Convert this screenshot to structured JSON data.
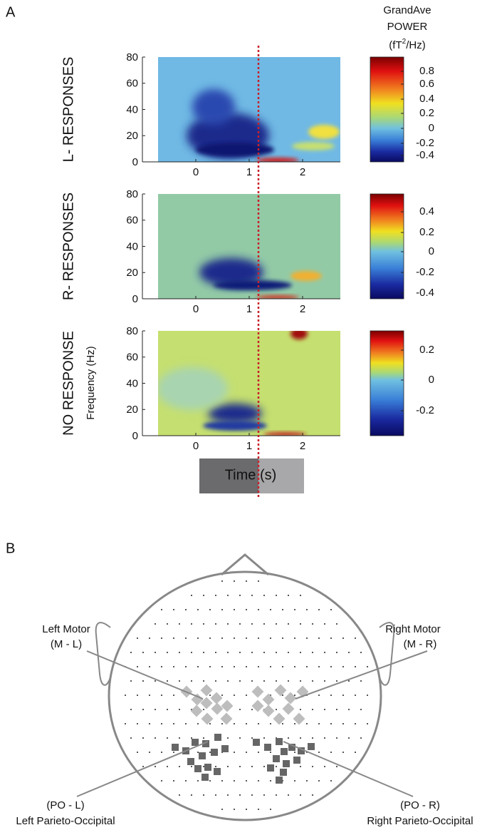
{
  "panel_a": {
    "label": "A",
    "colorbar_title": [
      "GrandAve",
      "POWER"
    ],
    "colorbar_unit": [
      "(fT",
      "2",
      "/Hz)"
    ],
    "x_axis_label": "Time (s)",
    "frequency_label": "Frequency (Hz)",
    "panels": [
      {
        "row_label": "L- RESPONSES",
        "y_ticks": [
          "0",
          "20",
          "40",
          "60",
          "80"
        ],
        "x_ticks": [
          "0",
          "1",
          "2"
        ],
        "colorbar_ticks": [
          "0.8",
          "0.6",
          "0.4",
          "0.2",
          "0",
          "-0.2",
          "-0.4"
        ]
      },
      {
        "row_label": "R- RESPONSES",
        "y_ticks": [
          "0",
          "20",
          "40",
          "60",
          "80"
        ],
        "x_ticks": [
          "0",
          "1",
          "2"
        ],
        "colorbar_ticks": [
          "0.4",
          "0.2",
          "0",
          "-0.2",
          "-0.4"
        ]
      },
      {
        "row_label": "NO RESPONSE",
        "y_ticks": [
          "0",
          "20",
          "40",
          "60",
          "80"
        ],
        "x_ticks": [
          "0",
          "1",
          "2"
        ],
        "colorbar_ticks": [
          "0.2",
          "0",
          "-0.2"
        ]
      }
    ]
  },
  "panel_b": {
    "label": "B",
    "regions": [
      {
        "name": "Left Motor",
        "code": "(M - L)"
      },
      {
        "name": "Right Motor",
        "code": "(M - R)"
      },
      {
        "name": "Left Parieto-Occipital",
        "code": "(PO - L)"
      },
      {
        "name": "Right Parieto-Occipital",
        "code": "(PO - R)"
      }
    ]
  }
}
